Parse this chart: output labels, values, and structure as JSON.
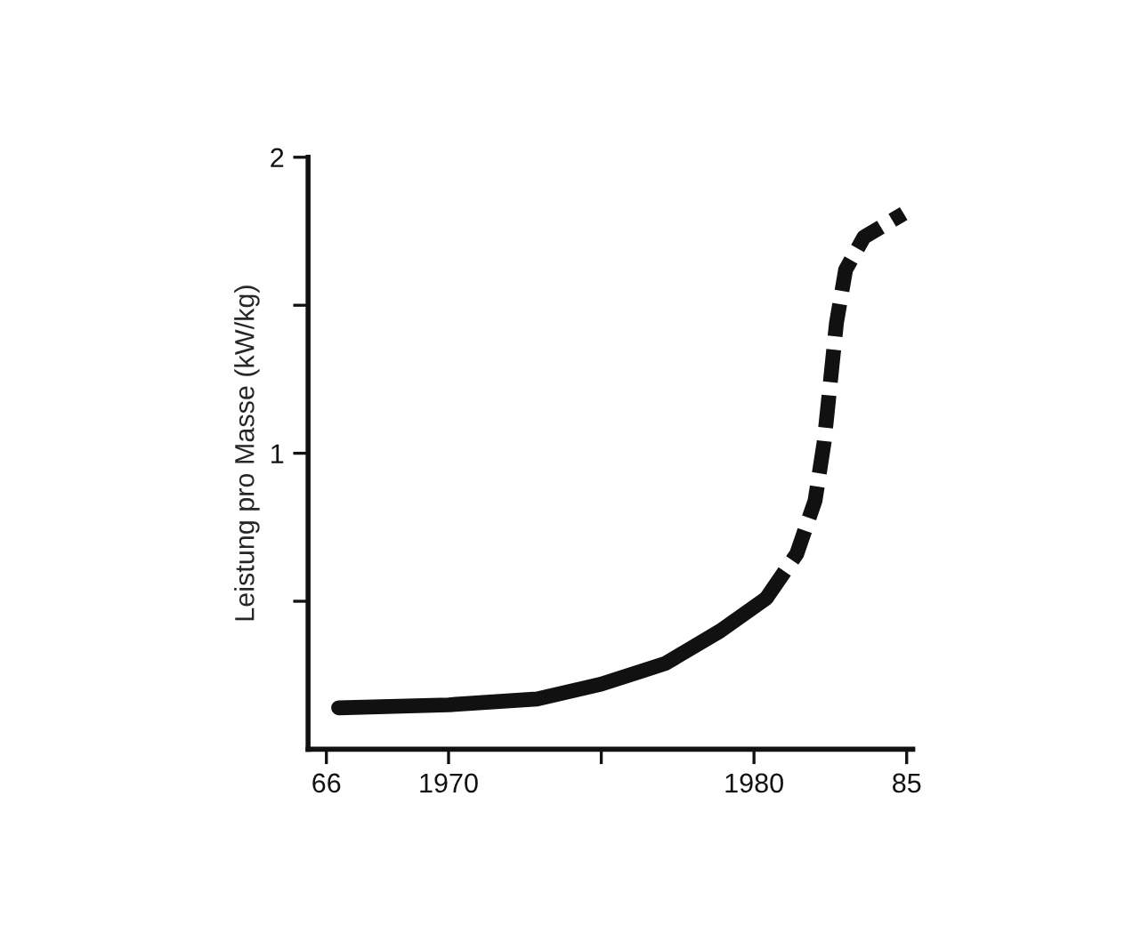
{
  "chart_data": {
    "type": "line",
    "ylabel": "Leistung pro Masse (kW/kg)",
    "xlim": [
      1965.4,
      1985.2
    ],
    "ylim": [
      0,
      2
    ],
    "xticks": [
      {
        "value": 1966,
        "label": "66"
      },
      1970,
      {
        "value": 1975,
        "label": null
      },
      1980,
      {
        "value": 1985,
        "label": "85"
      }
    ],
    "yticks": [
      {
        "value": 0.5,
        "label": null
      },
      1,
      {
        "value": 1.5,
        "label": null
      },
      2
    ],
    "grid": false,
    "legend": false,
    "series": [
      {
        "color": "#111111",
        "line_style": "solid",
        "x": [
          1966.4,
          1970,
          1972.9,
          1975,
          1977.1,
          1978.9,
          1980.4
        ],
        "values": [
          0.14,
          0.15,
          0.17,
          0.22,
          0.29,
          0.4,
          0.51
        ]
      },
      {
        "color": "#111111",
        "line_style": "dashed",
        "x": [
          1980.4,
          1981.4,
          1982.0,
          1982.3,
          1982.5,
          1982.7,
          1983.0,
          1983.6,
          1984.9
        ],
        "values": [
          0.51,
          0.66,
          0.84,
          1.04,
          1.24,
          1.44,
          1.62,
          1.73,
          1.81
        ]
      }
    ]
  }
}
